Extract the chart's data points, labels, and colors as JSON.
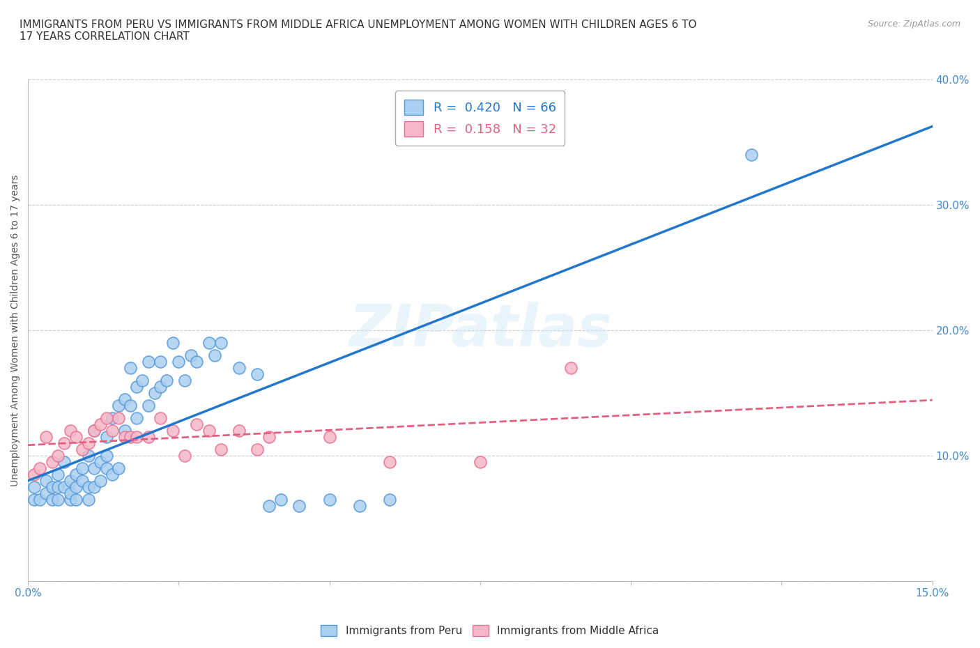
{
  "title": "IMMIGRANTS FROM PERU VS IMMIGRANTS FROM MIDDLE AFRICA UNEMPLOYMENT AMONG WOMEN WITH CHILDREN AGES 6 TO\n17 YEARS CORRELATION CHART",
  "source": "Source: ZipAtlas.com",
  "ylabel": "Unemployment Among Women with Children Ages 6 to 17 years",
  "xlim": [
    0.0,
    0.15
  ],
  "ylim": [
    0.0,
    0.4
  ],
  "xticks": [
    0.0,
    0.025,
    0.05,
    0.075,
    0.1,
    0.125,
    0.15
  ],
  "yticks": [
    0.0,
    0.1,
    0.2,
    0.3,
    0.4
  ],
  "right_ytick_labels": [
    "",
    "10.0%",
    "20.0%",
    "30.0%",
    "40.0%"
  ],
  "xtick_labels": [
    "0.0%",
    "",
    "",
    "",
    "",
    "",
    "15.0%"
  ],
  "watermark": "ZIPatlas",
  "peru_color": "#aacff0",
  "peru_edge": "#5599dd",
  "middle_africa_color": "#f5b8c8",
  "middle_africa_edge": "#e87090",
  "peru_line_color": "#2277cc",
  "middle_africa_line_color": "#e06080",
  "peru_r": 0.42,
  "peru_n": 66,
  "middle_africa_r": 0.158,
  "middle_africa_n": 32,
  "peru_x": [
    0.001,
    0.001,
    0.002,
    0.003,
    0.003,
    0.004,
    0.004,
    0.005,
    0.005,
    0.005,
    0.006,
    0.006,
    0.007,
    0.007,
    0.007,
    0.008,
    0.008,
    0.008,
    0.009,
    0.009,
    0.01,
    0.01,
    0.01,
    0.011,
    0.011,
    0.011,
    0.012,
    0.012,
    0.013,
    0.013,
    0.013,
    0.014,
    0.014,
    0.015,
    0.015,
    0.016,
    0.016,
    0.017,
    0.017,
    0.018,
    0.018,
    0.019,
    0.02,
    0.02,
    0.021,
    0.022,
    0.022,
    0.023,
    0.024,
    0.025,
    0.026,
    0.027,
    0.028,
    0.03,
    0.031,
    0.032,
    0.035,
    0.038,
    0.04,
    0.042,
    0.045,
    0.05,
    0.055,
    0.06,
    0.075,
    0.12
  ],
  "peru_y": [
    0.065,
    0.075,
    0.065,
    0.07,
    0.08,
    0.065,
    0.075,
    0.065,
    0.075,
    0.085,
    0.095,
    0.075,
    0.065,
    0.07,
    0.08,
    0.065,
    0.075,
    0.085,
    0.08,
    0.09,
    0.065,
    0.075,
    0.1,
    0.075,
    0.09,
    0.12,
    0.08,
    0.095,
    0.09,
    0.1,
    0.115,
    0.085,
    0.13,
    0.09,
    0.14,
    0.12,
    0.145,
    0.14,
    0.17,
    0.13,
    0.155,
    0.16,
    0.14,
    0.175,
    0.15,
    0.155,
    0.175,
    0.16,
    0.19,
    0.175,
    0.16,
    0.18,
    0.175,
    0.19,
    0.18,
    0.19,
    0.17,
    0.165,
    0.06,
    0.065,
    0.06,
    0.065,
    0.06,
    0.065,
    0.355,
    0.34
  ],
  "middle_africa_x": [
    0.001,
    0.002,
    0.003,
    0.004,
    0.005,
    0.006,
    0.007,
    0.008,
    0.009,
    0.01,
    0.011,
    0.012,
    0.013,
    0.014,
    0.015,
    0.016,
    0.017,
    0.018,
    0.02,
    0.022,
    0.024,
    0.026,
    0.028,
    0.03,
    0.032,
    0.035,
    0.038,
    0.04,
    0.05,
    0.06,
    0.075,
    0.09
  ],
  "middle_africa_y": [
    0.085,
    0.09,
    0.115,
    0.095,
    0.1,
    0.11,
    0.12,
    0.115,
    0.105,
    0.11,
    0.12,
    0.125,
    0.13,
    0.12,
    0.13,
    0.115,
    0.115,
    0.115,
    0.115,
    0.13,
    0.12,
    0.1,
    0.125,
    0.12,
    0.105,
    0.12,
    0.105,
    0.115,
    0.115,
    0.095,
    0.095,
    0.17
  ],
  "background_color": "#ffffff",
  "grid_color": "#cccccc",
  "title_fontsize": 11,
  "label_fontsize": 10,
  "tick_fontsize": 11,
  "legend_fontsize": 13
}
